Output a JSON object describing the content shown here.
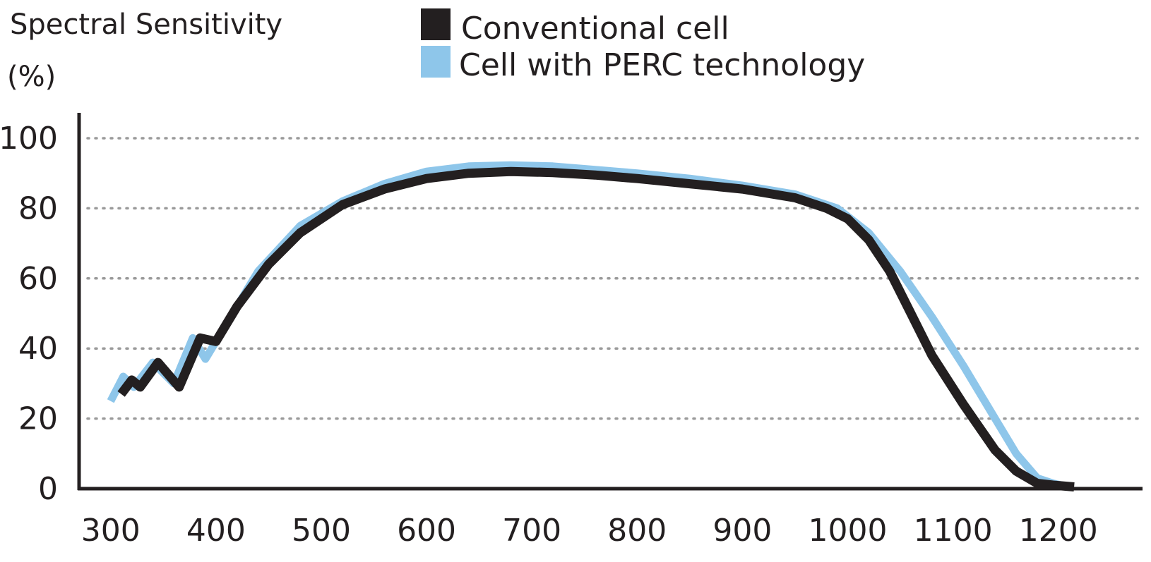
{
  "chart_data": {
    "type": "line",
    "ylabel_line1": "Spectral Sensitivity",
    "ylabel_line2": "(%)",
    "xlabel": "",
    "xlim": [
      270,
      1280
    ],
    "ylim": [
      0,
      100
    ],
    "x_ticks": [
      "300",
      "400",
      "500",
      "600",
      "700",
      "800",
      "900",
      "1000",
      "1100",
      "1200"
    ],
    "y_ticks": [
      "0",
      "20",
      "40",
      "60",
      "80",
      "100"
    ],
    "grid": "horizontal-dotted",
    "legend_position": "top-center",
    "series": [
      {
        "name": "Cell with PERC technology",
        "color": "#8ec6ea",
        "x": [
          300,
          312,
          322,
          340,
          360,
          378,
          390,
          410,
          440,
          480,
          520,
          560,
          600,
          640,
          680,
          720,
          760,
          800,
          850,
          900,
          950,
          990,
          1020,
          1050,
          1080,
          1110,
          1140,
          1160,
          1180,
          1195,
          1210
        ],
        "y": [
          25,
          32,
          29,
          36,
          30,
          43,
          37,
          47,
          62,
          75,
          82,
          87,
          90.5,
          92,
          92.3,
          92,
          91,
          90,
          88.5,
          86.5,
          84,
          80,
          73,
          62,
          49,
          35,
          20,
          10,
          3,
          1.5,
          0.5
        ]
      },
      {
        "name": "Conventional cell",
        "color": "#231f20",
        "x": [
          310,
          320,
          328,
          345,
          365,
          385,
          400,
          420,
          450,
          480,
          520,
          560,
          600,
          640,
          680,
          720,
          760,
          800,
          850,
          900,
          950,
          980,
          1000,
          1020,
          1040,
          1060,
          1080,
          1110,
          1140,
          1160,
          1180,
          1195,
          1215
        ],
        "y": [
          27,
          31,
          29,
          36,
          29,
          43,
          42,
          52,
          64,
          73,
          81,
          85.5,
          88.5,
          90,
          90.5,
          90.2,
          89.5,
          88.5,
          87,
          85.5,
          83,
          80,
          77,
          71,
          62,
          50,
          38,
          24,
          11,
          5,
          1.5,
          1,
          0.5
        ]
      }
    ]
  }
}
